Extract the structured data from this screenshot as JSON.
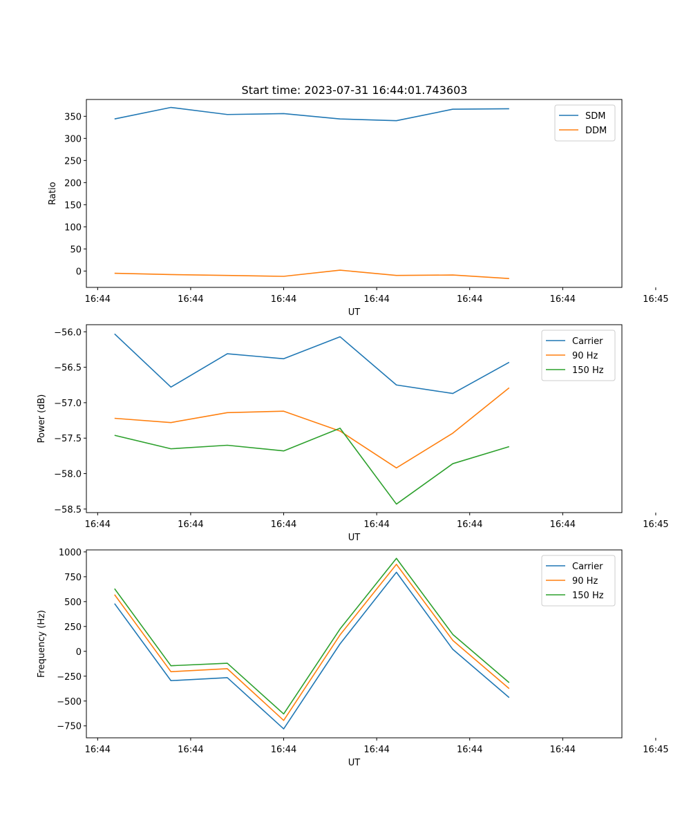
{
  "title": "Start time: 2023-07-31 16:44:01.743603",
  "colors": {
    "blue": "#1f77b4",
    "orange": "#ff7f0e",
    "green": "#2ca02c"
  },
  "chart_data": [
    {
      "type": "line",
      "title": "Start time: 2023-07-31 16:44:01.743603",
      "xlabel": "UT",
      "ylabel": "Ratio",
      "xlim": [
        -0.5,
        9.0
      ],
      "ylim": [
        -37,
        388
      ],
      "xticks": [
        -0.3,
        1.35,
        3.0,
        4.65,
        6.3,
        7.95,
        9.6
      ],
      "xtick_labels": [
        "16:44",
        "16:44",
        "16:44",
        "16:44",
        "16:44",
        "16:44",
        "16:45"
      ],
      "yticks": [
        0,
        50,
        100,
        150,
        200,
        250,
        300,
        350
      ],
      "ytick_labels": [
        "0",
        "50",
        "100",
        "150",
        "200",
        "250",
        "300",
        "350"
      ],
      "legend_position": "top-right",
      "x": [
        0,
        1,
        2,
        3,
        4,
        5,
        6,
        7
      ],
      "series": [
        {
          "name": "SDM",
          "color": "#1f77b4",
          "values": [
            344,
            370,
            354,
            356,
            344,
            340,
            366,
            367
          ]
        },
        {
          "name": "DDM",
          "color": "#ff7f0e",
          "values": [
            -5,
            -8,
            -10,
            -12,
            2,
            -10,
            -9,
            -17
          ]
        }
      ]
    },
    {
      "type": "line",
      "xlabel": "UT",
      "ylabel": "Power (dB)",
      "xlim": [
        -0.5,
        9.0
      ],
      "ylim": [
        -58.55,
        -55.9
      ],
      "xticks": [
        -0.3,
        1.35,
        3.0,
        4.65,
        6.3,
        7.95,
        9.6
      ],
      "xtick_labels": [
        "16:44",
        "16:44",
        "16:44",
        "16:44",
        "16:44",
        "16:44",
        "16:45"
      ],
      "yticks": [
        -56.0,
        -56.5,
        -57.0,
        -57.5,
        -58.0,
        -58.5
      ],
      "ytick_labels": [
        "−56.0",
        "−56.5",
        "−57.0",
        "−57.5",
        "−58.0",
        "−58.5"
      ],
      "legend_position": "top-right",
      "x": [
        0,
        1,
        2,
        3,
        4,
        5,
        6,
        7
      ],
      "series": [
        {
          "name": "Carrier",
          "color": "#1f77b4",
          "values": [
            -56.03,
            -56.78,
            -56.31,
            -56.38,
            -56.07,
            -56.75,
            -56.87,
            -56.43
          ]
        },
        {
          "name": "90 Hz",
          "color": "#ff7f0e",
          "values": [
            -57.22,
            -57.28,
            -57.14,
            -57.12,
            -57.4,
            -57.92,
            -57.43,
            -56.79
          ]
        },
        {
          "name": "150 Hz",
          "color": "#2ca02c",
          "values": [
            -57.46,
            -57.65,
            -57.6,
            -57.68,
            -57.36,
            -58.43,
            -57.86,
            -57.62
          ]
        }
      ]
    },
    {
      "type": "line",
      "xlabel": "UT",
      "ylabel": "Frequency (Hz)",
      "xlim": [
        -0.5,
        9.0
      ],
      "ylim": [
        -870,
        1020
      ],
      "xticks": [
        -0.3,
        1.35,
        3.0,
        4.65,
        6.3,
        7.95,
        9.6
      ],
      "xtick_labels": [
        "16:44",
        "16:44",
        "16:44",
        "16:44",
        "16:44",
        "16:44",
        "16:45"
      ],
      "yticks": [
        -750,
        -500,
        -250,
        0,
        250,
        500,
        750,
        1000
      ],
      "ytick_labels": [
        "−750",
        "−500",
        "−250",
        "0",
        "250",
        "500",
        "750",
        "1000"
      ],
      "legend_position": "top-right",
      "x": [
        0,
        1,
        2,
        3,
        4,
        5,
        6,
        7
      ],
      "series": [
        {
          "name": "Carrier",
          "color": "#1f77b4",
          "values": [
            480,
            -295,
            -265,
            -780,
            75,
            795,
            20,
            -465
          ]
        },
        {
          "name": "90 Hz",
          "color": "#ff7f0e",
          "values": [
            570,
            -205,
            -175,
            -695,
            165,
            875,
            110,
            -375
          ]
        },
        {
          "name": "150 Hz",
          "color": "#2ca02c",
          "values": [
            630,
            -145,
            -120,
            -630,
            225,
            935,
            170,
            -315
          ]
        }
      ]
    }
  ]
}
